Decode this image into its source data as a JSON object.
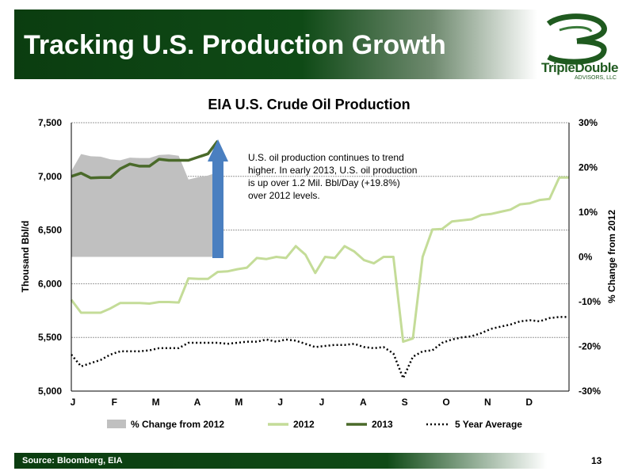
{
  "slide": {
    "title": "Tracking U.S. Production Growth",
    "source": "Source: Bloomberg, EIA",
    "page_number": "13",
    "logo_text": "TripleDouble",
    "logo_subtext": "ADVISORS, LLC"
  },
  "annotation": "U.S. oil production continues to trend higher.  In early 2013, U.S. oil production is up over 1.2 Mil. Bbl/Day (+19.8%) over 2012 levels.",
  "colors": {
    "header_green": "#0f4a16",
    "pct_change_fill": "#c0c0c0",
    "series_2012": "#c4dc98",
    "series_2013": "#4a6a2a",
    "five_year": "#000000",
    "arrow": "#4a7fc0"
  },
  "chart_data": {
    "type": "line",
    "title": "EIA U.S. Crude Oil Production",
    "ylabel": "Thousand Bbl/d",
    "y2label": "% Change from 2012",
    "ylim": [
      5000,
      7500
    ],
    "y2lim": [
      -30,
      30
    ],
    "y_ticks": [
      "5,000",
      "5,500",
      "6,000",
      "6,500",
      "7,000",
      "7,500"
    ],
    "y2_ticks": [
      "-30%",
      "-20%",
      "-10%",
      "0%",
      "10%",
      "20%",
      "30%"
    ],
    "x_ticks": [
      "J",
      "F",
      "M",
      "A",
      "M",
      "J",
      "J",
      "A",
      "S",
      "O",
      "N",
      "D"
    ],
    "x_axis": "weeks of year",
    "xlim": [
      1,
      52
    ],
    "grid": true,
    "legend_position": "bottom",
    "series": [
      {
        "name": "% Change from 2012",
        "kind": "area",
        "axis": "y2",
        "x": [
          1,
          2,
          3,
          4,
          5,
          6,
          7,
          8,
          9,
          10,
          11,
          12,
          13,
          14,
          15,
          16
        ],
        "values": [
          19.2,
          23.0,
          22.5,
          22.4,
          21.8,
          21.6,
          22.2,
          22.1,
          22.1,
          22.8,
          22.9,
          22.6,
          17.3,
          17.8,
          18.2,
          18.9
        ]
      },
      {
        "name": "2012",
        "kind": "line",
        "axis": "y",
        "x": [
          1,
          2,
          3,
          4,
          5,
          6,
          7,
          8,
          9,
          10,
          11,
          12,
          13,
          14,
          15,
          16,
          17,
          18,
          19,
          20,
          21,
          22,
          23,
          24,
          25,
          26,
          27,
          28,
          29,
          30,
          31,
          32,
          33,
          34,
          35,
          36,
          37,
          38,
          39,
          40,
          41,
          42,
          43,
          44,
          45,
          46,
          47,
          48,
          49,
          50,
          51,
          52
        ],
        "values": [
          5850,
          5730,
          5730,
          5730,
          5770,
          5820,
          5820,
          5820,
          5815,
          5830,
          5830,
          5825,
          6050,
          6045,
          6045,
          6110,
          6115,
          6135,
          6150,
          6240,
          6230,
          6250,
          6240,
          6350,
          6270,
          6100,
          6250,
          6240,
          6350,
          6300,
          6220,
          6190,
          6250,
          6250,
          5460,
          5490,
          6250,
          6505,
          6510,
          6580,
          6590,
          6600,
          6640,
          6650,
          6670,
          6690,
          6740,
          6750,
          6780,
          6790,
          6990,
          6990
        ]
      },
      {
        "name": "2013",
        "kind": "line",
        "axis": "y",
        "x": [
          1,
          2,
          3,
          4,
          5,
          6,
          7,
          8,
          9,
          10,
          11,
          12,
          13,
          14,
          15,
          16
        ],
        "values": [
          7000,
          7030,
          6985,
          6990,
          6990,
          7070,
          7115,
          7095,
          7095,
          7160,
          7150,
          7150,
          7150,
          7180,
          7210,
          7330
        ]
      },
      {
        "name": "5 Year Average",
        "kind": "dotted",
        "axis": "y",
        "x": [
          1,
          2,
          3,
          4,
          5,
          6,
          7,
          8,
          9,
          10,
          11,
          12,
          13,
          14,
          15,
          16,
          17,
          18,
          19,
          20,
          21,
          22,
          23,
          24,
          25,
          26,
          27,
          28,
          29,
          30,
          31,
          32,
          33,
          34,
          35,
          36,
          37,
          38,
          39,
          40,
          41,
          42,
          43,
          44,
          45,
          46,
          47,
          48,
          49,
          50,
          51,
          52
        ],
        "values": [
          5340,
          5230,
          5260,
          5290,
          5340,
          5370,
          5370,
          5370,
          5380,
          5400,
          5400,
          5400,
          5450,
          5450,
          5450,
          5450,
          5440,
          5450,
          5460,
          5460,
          5480,
          5460,
          5480,
          5470,
          5440,
          5410,
          5420,
          5430,
          5430,
          5440,
          5410,
          5400,
          5410,
          5350,
          5120,
          5320,
          5370,
          5380,
          5450,
          5480,
          5500,
          5510,
          5540,
          5580,
          5600,
          5620,
          5650,
          5660,
          5650,
          5680,
          5690,
          5690
        ]
      }
    ]
  }
}
